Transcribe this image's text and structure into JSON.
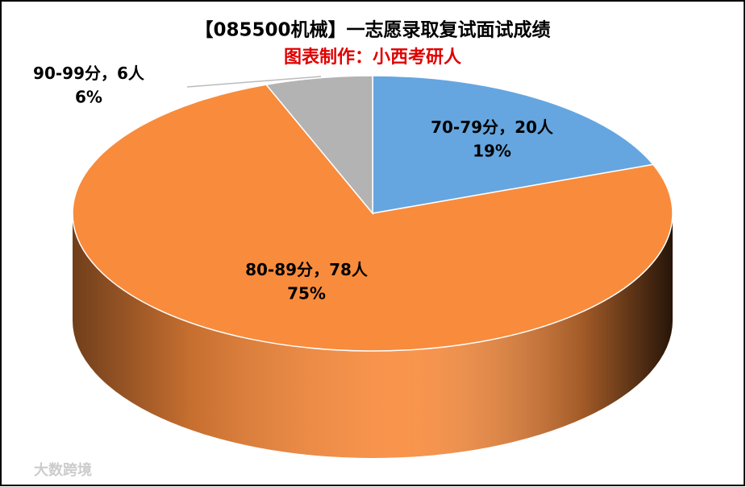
{
  "chart_data": {
    "type": "pie",
    "title": "【085500机械】一志愿录取复试面试成绩",
    "subtitle": "图表制作：小西考研人",
    "categories": [
      "70-79分",
      "80-89分",
      "90-99分"
    ],
    "label_separator": "，",
    "values": [
      20,
      78,
      6
    ],
    "value_labels": [
      "20人",
      "78人",
      "6人"
    ],
    "percents": [
      19,
      75,
      6
    ],
    "percent_labels": [
      "19%",
      "75%",
      "6%"
    ],
    "colors": [
      "#65a6e0",
      "#f98b3c",
      "#b3b3b3"
    ],
    "watermark": "大数跨境"
  }
}
